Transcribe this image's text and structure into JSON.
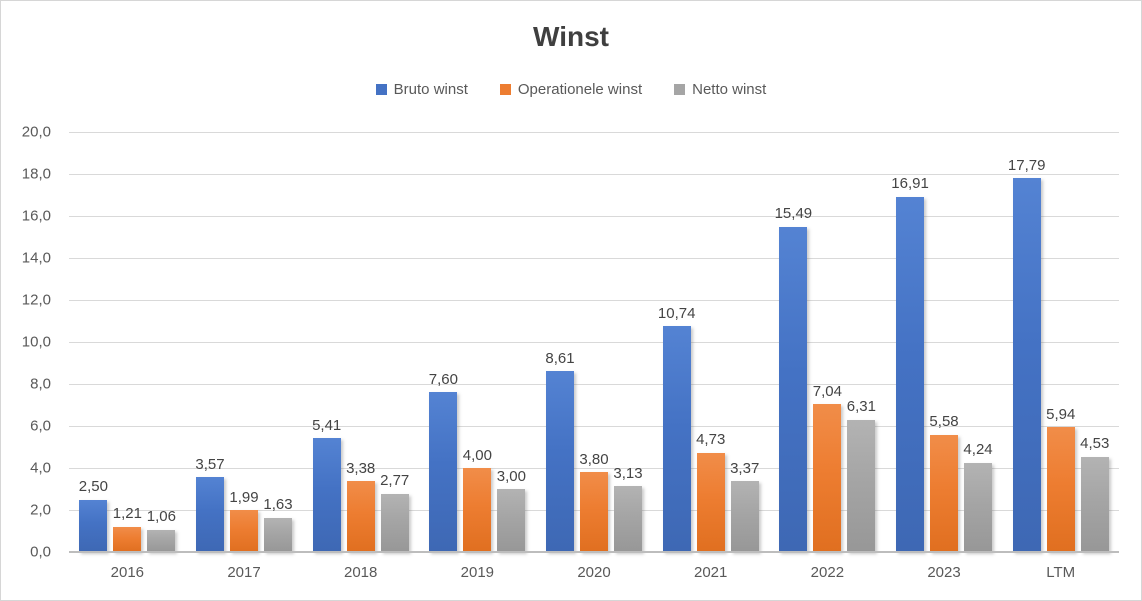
{
  "chart_data": {
    "type": "bar",
    "title": "Winst",
    "categories": [
      "2016",
      "2017",
      "2018",
      "2019",
      "2020",
      "2021",
      "2022",
      "2023",
      "LTM"
    ],
    "series": [
      {
        "name": "Bruto winst",
        "color": "#4472C4",
        "color_light": "#5483d3",
        "color_dark": "#3e68b4",
        "values": [
          2.5,
          3.57,
          5.41,
          7.6,
          8.61,
          10.74,
          15.49,
          16.91,
          17.79
        ]
      },
      {
        "name": "Operationele winst",
        "color": "#ED7D31",
        "color_light": "#f18d49",
        "color_dark": "#e06f20",
        "values": [
          1.21,
          1.99,
          3.38,
          4.0,
          3.8,
          4.73,
          7.04,
          5.58,
          5.94
        ]
      },
      {
        "name": "Netto winst",
        "color": "#A5A5A5",
        "color_light": "#b3b3b3",
        "color_dark": "#979797",
        "values": [
          1.06,
          1.63,
          2.77,
          3.0,
          3.13,
          3.37,
          6.31,
          4.24,
          4.53
        ]
      }
    ],
    "xlabel": "",
    "ylabel": "",
    "ylim": [
      0,
      20
    ],
    "ytick_step": 2,
    "ytick_labels": [
      "0,0",
      "2,0",
      "4,0",
      "6,0",
      "8,0",
      "10,0",
      "12,0",
      "14,0",
      "16,0",
      "18,0",
      "20,0"
    ],
    "decimal_separator": ",",
    "grid": true,
    "legend_position": "top",
    "gridline_color": "#d9d9d9",
    "axis_line_color": "#bdbdbd",
    "label_color": "#444444",
    "axis_text_color": "#595959",
    "title_color": "#3f3f3f"
  }
}
